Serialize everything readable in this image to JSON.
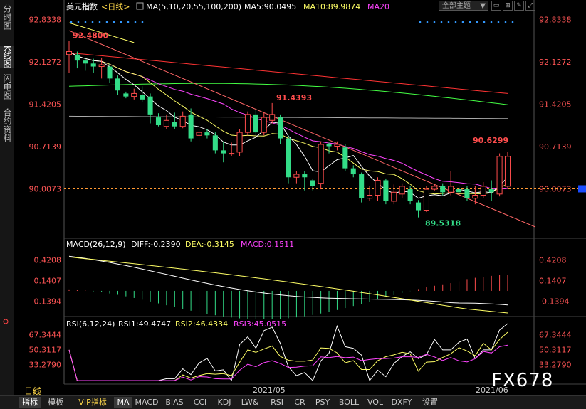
{
  "sidebar": {
    "items": [
      "分时图",
      "K线图",
      "闪电图",
      "合约资料"
    ]
  },
  "header": {
    "title": "美元指数",
    "period_tag": "<日线>",
    "ma_label": "MA(5,10,20,55,100,200)",
    "ma5_label": "MA5:90.0495",
    "ma10_label": "MA10:89.9874",
    "ma20_label": "MA20",
    "theme_select": "全部主题",
    "colors": {
      "ma5": "#ffffff",
      "ma10": "#ffff66",
      "ma20": "#ff44ff",
      "ma55": "#44ff44",
      "ma100": "#aaaaaa",
      "ma200": "#ff3333",
      "trend": "#ff6666"
    }
  },
  "price_axis": {
    "ticks": [
      "92.8338",
      "92.1272",
      "91.4205",
      "90.7139",
      "90.0073"
    ],
    "current": "90.0073"
  },
  "annotations": {
    "high1": "92.4800",
    "high2": "91.4393",
    "low": "89.5318",
    "last": "90.6299"
  },
  "macd": {
    "label": "MACD(26,12,9)",
    "diff": "DIFF:-0.2390",
    "dea": "DEA:-0.3145",
    "macd": "MACD:0.1511",
    "ticks": [
      "0.4208",
      "0.1407",
      "-0.1394"
    ],
    "colors": {
      "diff": "#ffffff",
      "dea": "#ffff66",
      "macd": "#ff44ff"
    }
  },
  "rsi": {
    "label": "RSI(6,12,24)",
    "rsi1": "RSI1:49.4747",
    "rsi2": "RSI2:46.4334",
    "rsi3": "RSI3:45.0515",
    "ticks": [
      "67.3444",
      "50.3117",
      "33.2790"
    ],
    "colors": {
      "rsi1": "#ffffff",
      "rsi2": "#ffff66",
      "rsi3": "#ff44ff"
    }
  },
  "time_axis": {
    "labels": [
      "2021/05",
      "2021/06"
    ]
  },
  "period_label": "日线",
  "watermark": "FX678",
  "tabs": [
    "指标",
    "模板",
    "VIP指标",
    "MA",
    "MACD",
    "BIAS",
    "CCI",
    "KDJ",
    "LW&",
    "RSI",
    "CR",
    "PSY",
    "BOLL",
    "VOL",
    "DXFY",
    "设置"
  ],
  "chart_data": {
    "type": "candlestick",
    "title": "美元指数",
    "ylim": [
      89.3,
      92.9
    ],
    "candles": [
      [
        92.25,
        92.3,
        91.95,
        92.48
      ],
      [
        92.25,
        92.15,
        92.02,
        92.3
      ],
      [
        92.15,
        92.1,
        91.98,
        92.2
      ],
      [
        92.1,
        92.05,
        91.95,
        92.18
      ],
      [
        92.05,
        92.08,
        91.85,
        92.2
      ],
      [
        92.05,
        91.85,
        91.78,
        92.1
      ],
      [
        91.85,
        91.65,
        91.58,
        91.9
      ],
      [
        91.6,
        91.55,
        91.52,
        91.63
      ],
      [
        91.55,
        91.6,
        91.5,
        91.68
      ],
      [
        91.58,
        91.5,
        91.45,
        91.72
      ],
      [
        91.55,
        91.25,
        91.1,
        91.6
      ],
      [
        91.2,
        91.07,
        91.05,
        91.27
      ],
      [
        91.05,
        91.15,
        91.0,
        91.25
      ],
      [
        91.12,
        91.05,
        91.0,
        91.28
      ],
      [
        91.05,
        91.22,
        91.02,
        91.3
      ],
      [
        91.25,
        90.85,
        90.8,
        91.35
      ],
      [
        90.9,
        90.95,
        90.8,
        91.15
      ],
      [
        90.95,
        90.9,
        90.85,
        91.0
      ],
      [
        90.9,
        90.65,
        90.6,
        90.95
      ],
      [
        90.65,
        90.6,
        90.45,
        90.8
      ],
      [
        90.6,
        90.6,
        90.55,
        90.78
      ],
      [
        90.62,
        90.95,
        90.55,
        91.0
      ],
      [
        90.95,
        91.25,
        90.9,
        91.3
      ],
      [
        91.25,
        90.95,
        90.9,
        91.35
      ],
      [
        90.95,
        91.2,
        90.9,
        91.28
      ],
      [
        91.15,
        91.25,
        91.1,
        91.44
      ],
      [
        91.2,
        90.85,
        90.75,
        91.25
      ],
      [
        90.85,
        90.2,
        90.1,
        90.9
      ],
      [
        90.2,
        90.25,
        90.1,
        90.3
      ],
      [
        90.25,
        90.2,
        89.98,
        90.3
      ],
      [
        90.15,
        90.05,
        89.98,
        90.18
      ],
      [
        90.1,
        90.75,
        90.0,
        90.8
      ],
      [
        90.75,
        90.72,
        90.6,
        90.78
      ],
      [
        90.72,
        90.75,
        90.65,
        90.8
      ],
      [
        90.7,
        90.35,
        90.3,
        90.75
      ],
      [
        90.35,
        90.25,
        90.2,
        90.4
      ],
      [
        90.25,
        89.85,
        89.78,
        90.28
      ],
      [
        89.85,
        89.9,
        89.8,
        90.05
      ],
      [
        89.9,
        90.15,
        89.8,
        90.2
      ],
      [
        90.15,
        89.8,
        89.75,
        90.18
      ],
      [
        89.8,
        89.95,
        89.75,
        90.08
      ],
      [
        89.92,
        90.05,
        89.85,
        90.1
      ],
      [
        90.0,
        89.8,
        89.75,
        90.05
      ],
      [
        89.78,
        89.65,
        89.53,
        89.82
      ],
      [
        89.65,
        90.0,
        89.62,
        90.05
      ],
      [
        90.0,
        90.05,
        89.98,
        90.08
      ],
      [
        90.05,
        89.95,
        89.9,
        90.1
      ],
      [
        89.95,
        90.05,
        89.9,
        90.3
      ],
      [
        90.0,
        89.95,
        89.9,
        90.05
      ],
      [
        90.0,
        89.85,
        89.8,
        90.05
      ],
      [
        89.85,
        89.9,
        89.75,
        90.05
      ],
      [
        89.9,
        90.05,
        89.85,
        90.12
      ],
      [
        90.0,
        89.95,
        89.8,
        90.15
      ],
      [
        89.92,
        90.55,
        89.88,
        90.6
      ],
      [
        90.05,
        90.55,
        90.02,
        90.63
      ]
    ]
  }
}
